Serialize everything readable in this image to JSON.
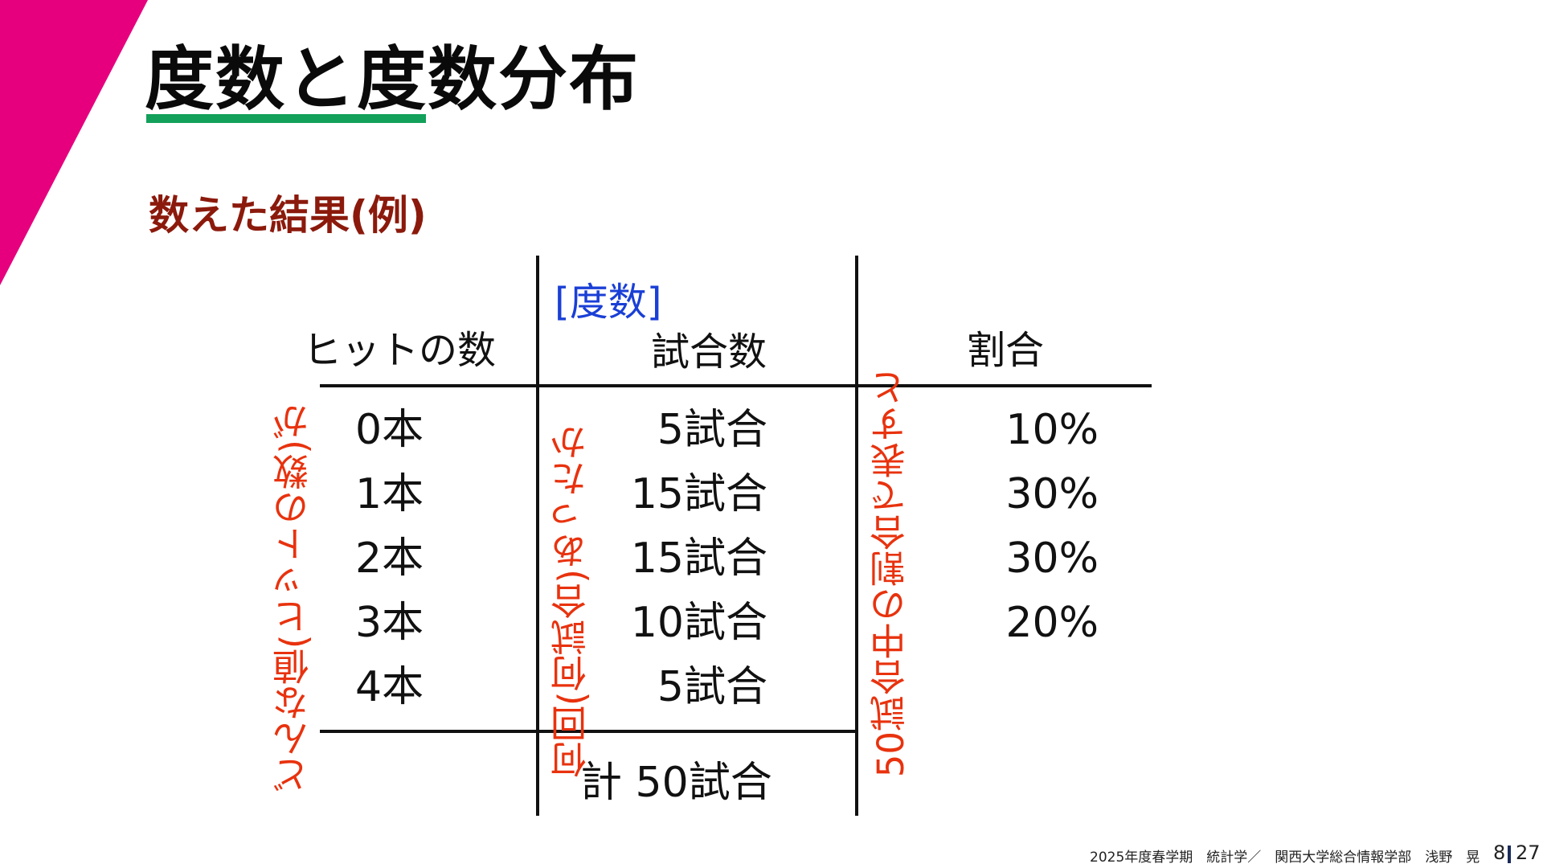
{
  "colors": {
    "accent_magenta": "#e6007e",
    "underline_green": "#12a05a",
    "subtitle": "#8b1a0c",
    "frequency_label": "#1a3fd6",
    "annotation": "#e8320e"
  },
  "slide": {
    "title": "度数と度数分布",
    "subtitle": "数えた結果(例)"
  },
  "table": {
    "headers": {
      "hits": "ヒットの数",
      "frequency_label": "[度数]",
      "games": "試合数",
      "ratio": "割合"
    },
    "rows": [
      {
        "hits": "0本",
        "games": "5試合",
        "ratio": "10%"
      },
      {
        "hits": "1本",
        "games": "15試合",
        "ratio": "30%"
      },
      {
        "hits": "2本",
        "games": "15試合",
        "ratio": "30%"
      },
      {
        "hits": "3本",
        "games": "10試合",
        "ratio": "20%"
      },
      {
        "hits": "4本",
        "games": "5試合"
      }
    ],
    "total": "計 50試合"
  },
  "annotations": {
    "value": "どんな値(ヒットの数)が",
    "count": "何回(何試合)あったか",
    "ratio": "50試合中の割合で表すと"
  },
  "footer": {
    "course": "2025年度春学期　統計学／　関西大学総合情報学部　浅野　晃",
    "page_current": "8",
    "page_total": "27"
  }
}
